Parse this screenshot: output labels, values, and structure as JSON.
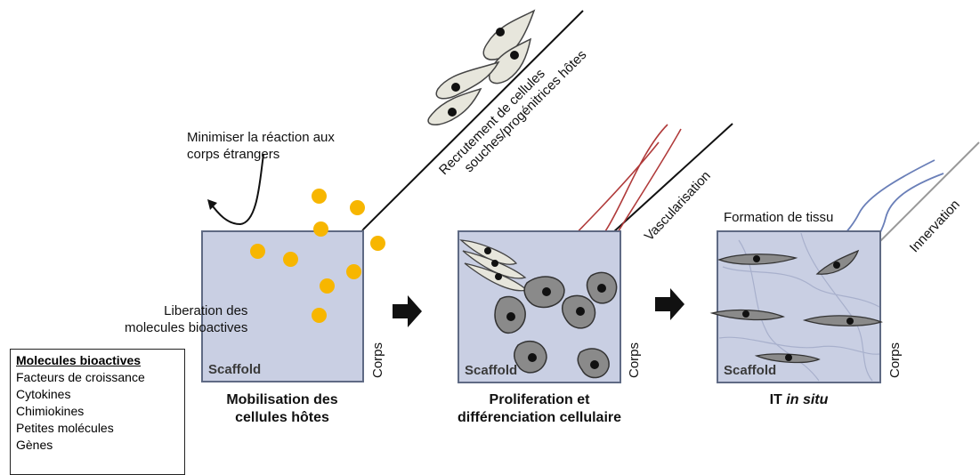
{
  "labels": {
    "foreign_body": "Minimiser la réaction aux\ncorps étrangers",
    "recruitment_line1": "Recrutement de cellules",
    "recruitment_line2": "souches/progénitrices hôtes",
    "vascularisation": "Vascularisation",
    "innervation": "Innervation",
    "tissue_formation": "Formation de tissu",
    "release": "Liberation des\nmolecules bioactives",
    "scaffold": "Scaffold",
    "corps": "Corps"
  },
  "stages": [
    {
      "caption": "Mobilisation des\ncellules hôtes"
    },
    {
      "caption": "Proliferation et\ndifférenciation cellulaire"
    },
    {
      "caption_prefix": "IT ",
      "caption_italic": "in situ"
    }
  ],
  "legend": {
    "title": "Molecules bioactives",
    "items": [
      "Facteurs de croissance",
      "Cytokines",
      "Chimiokines",
      "Petites molécules",
      "Gènes"
    ]
  },
  "colors": {
    "scaffold_fill": "#c9cfe3",
    "molecule": "#f7b600",
    "vessel": "#b03a3a",
    "nerve": "#6a7fb8",
    "cell_dark": "#8a8a8a",
    "cell_light": "#e7e6dc"
  }
}
